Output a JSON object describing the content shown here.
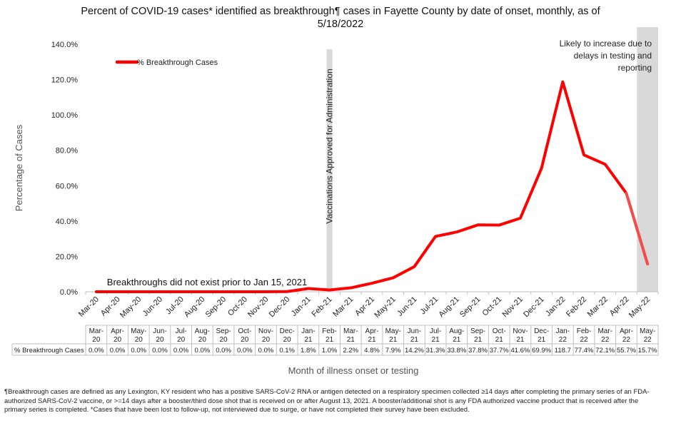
{
  "chart_data": {
    "type": "line",
    "title_line1": "Percent of COVID-19 cases* identified as breakthrough¶ cases in Fayette County by date of onset, monthly, as of",
    "title_line2": "5/18/2022",
    "ylabel": "Percentage of Cases",
    "xlabel": "Month of illness onset or testing",
    "ylim": [
      0,
      140
    ],
    "yticks": [
      "0.0%",
      "20.0%",
      "40.0%",
      "60.0%",
      "80.0%",
      "100.0%",
      "120.0%",
      "140.0%"
    ],
    "categories": [
      "Mar-20",
      "Apr-20",
      "May-20",
      "Jun-20",
      "Jul-20",
      "Aug-20",
      "Sep-20",
      "Oct-20",
      "Nov-20",
      "Dec-20",
      "Jan-21",
      "Feb-21",
      "Mar-21",
      "Apr-21",
      "May-21",
      "Jun-21",
      "Jul-21",
      "Aug-21",
      "Sep-21",
      "Oct-21",
      "Nov-21",
      "Dec-21",
      "Jan-22",
      "Feb-22",
      "Mar-22",
      "Apr-22",
      "May-22"
    ],
    "table_categories": [
      [
        "Mar-",
        "20"
      ],
      [
        "Apr-",
        "20"
      ],
      [
        "May-",
        "20"
      ],
      [
        "Jun-",
        "20"
      ],
      [
        "Jul-",
        "20"
      ],
      [
        "Aug-",
        "20"
      ],
      [
        "Sep-",
        "20"
      ],
      [
        "Oct-",
        "20"
      ],
      [
        "Nov-",
        "20"
      ],
      [
        "Dec-",
        "20"
      ],
      [
        "Jan-",
        "21"
      ],
      [
        "Feb-",
        "21"
      ],
      [
        "Mar-",
        "21"
      ],
      [
        "Apr-",
        "21"
      ],
      [
        "May-",
        "21"
      ],
      [
        "Jun-",
        "21"
      ],
      [
        "Jul-",
        "21"
      ],
      [
        "Aug-",
        "21"
      ],
      [
        "Sep-",
        "21"
      ],
      [
        "Oct-",
        "21"
      ],
      [
        "Nov-",
        "21"
      ],
      [
        "Dec-",
        "21"
      ],
      [
        "Jan-",
        "22"
      ],
      [
        "Feb-",
        "22"
      ],
      [
        "Mar-",
        "22"
      ],
      [
        "Apr-",
        "22"
      ],
      [
        "May-",
        "22"
      ]
    ],
    "series": [
      {
        "name": "% Breakthrough Cases",
        "table_label": "% Breakthrough Cases",
        "color": "#ff0000",
        "values": [
          0.0,
          0.0,
          0.0,
          0.0,
          0.0,
          0.0,
          0.0,
          0.0,
          0.0,
          0.1,
          1.8,
          1.0,
          2.2,
          4.8,
          7.9,
          14.2,
          31.3,
          33.8,
          37.8,
          37.7,
          41.6,
          69.9,
          118.7,
          77.4,
          72.1,
          55.7,
          15.7
        ],
        "value_labels": [
          "0.0%",
          "0.0%",
          "0.0%",
          "0.0%",
          "0.0%",
          "0.0%",
          "0.0%",
          "0.0%",
          "0.0%",
          "0.1%",
          "1.8%",
          "1.0%",
          "2.2%",
          "4.8%",
          "7.9%",
          "14.2%",
          "31.3%",
          "33.8%",
          "37.8%",
          "37.7%",
          "41.6%",
          "69.9%",
          "118.7",
          "77.4%",
          "72.1%",
          "55.7%",
          "15.7%"
        ]
      }
    ],
    "legend": "top-left",
    "grid": false,
    "annotations": {
      "vaccination_label": "Vaccinations Approved for Administration",
      "vaccination_category": "Feb-21",
      "reporting_delay_lines": [
        "Likely to increase due to",
        "delays in testing and",
        "reporting"
      ],
      "reporting_delay_category": "May-22",
      "no_breakthrough_note": "Breakthroughs did not exist prior to Jan 15, 2021"
    },
    "colors": {
      "line": "#ff0000",
      "shade": "#d9d9d9"
    }
  },
  "footnote": {
    "line1": "¶Breakthrough cases are defined as any Lexington, KY resident who has a positive SARS-CoV-2 RNA or antigen detected on a respiratory specimen collected ≥14 days after completing the primary series of an FDA-",
    "line2": "authorized SARS-CoV-2 vaccine, or >=14 days after a booster/third dose shot that is received on or after August 13, 2021.  A booster/additional shot is any FDA authorized vaccine product that is received after the",
    "line3": "primary series is completed.  *Cases that have been lost to follow-up, not interviewed due to surge, or have not completed their survey have been excluded."
  }
}
